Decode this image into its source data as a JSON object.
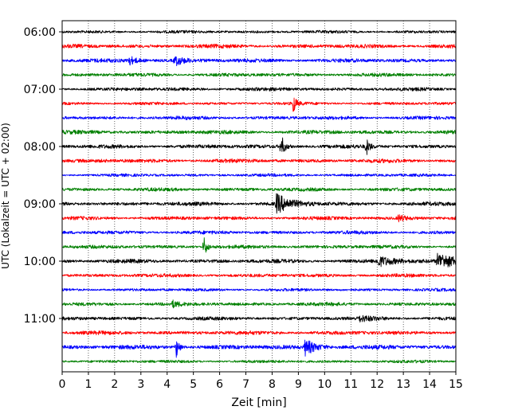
{
  "chart_data": {
    "type": "line",
    "title": "",
    "xlabel": "Zeit  [min]",
    "ylabel": "UTC (Lokalzeit = UTC + 02:00)",
    "xlim": [
      0,
      15
    ],
    "x_ticks": [
      0,
      1,
      2,
      3,
      4,
      5,
      6,
      7,
      8,
      9,
      10,
      11,
      12,
      13,
      14,
      15
    ],
    "grid": "vertical dotted",
    "start_time": "06:00",
    "row_interval_minutes": 15,
    "y_tick_labels": [
      "06:00",
      "07:00",
      "08:00",
      "09:00",
      "10:00",
      "11:00"
    ],
    "colors": [
      "#000000",
      "#ff0000",
      "#0000ff",
      "#008000"
    ],
    "rows": [
      {
        "time": "06:00",
        "color": "#000000",
        "noise": 1.5,
        "events": []
      },
      {
        "time": "06:15",
        "color": "#ff0000",
        "noise": 2.0,
        "events": []
      },
      {
        "time": "06:30",
        "color": "#0000ff",
        "noise": 2.0,
        "events": [
          {
            "t": 2.5,
            "amp": 6,
            "dur": 0.3
          },
          {
            "t": 4.3,
            "amp": 6,
            "dur": 0.3
          }
        ]
      },
      {
        "time": "06:45",
        "color": "#008000",
        "noise": 1.8,
        "events": []
      },
      {
        "time": "07:00",
        "color": "#000000",
        "noise": 1.8,
        "events": []
      },
      {
        "time": "07:15",
        "color": "#ff0000",
        "noise": 1.5,
        "events": [
          {
            "t": 8.8,
            "amp": 12,
            "dur": 0.1
          }
        ]
      },
      {
        "time": "07:30",
        "color": "#0000ff",
        "noise": 1.8,
        "events": []
      },
      {
        "time": "07:45",
        "color": "#008000",
        "noise": 2.0,
        "events": []
      },
      {
        "time": "08:00",
        "color": "#000000",
        "noise": 2.0,
        "events": [
          {
            "t": 8.35,
            "amp": 14,
            "dur": 0.12
          },
          {
            "t": 11.6,
            "amp": 10,
            "dur": 0.1
          }
        ]
      },
      {
        "time": "08:15",
        "color": "#ff0000",
        "noise": 2.0,
        "events": []
      },
      {
        "time": "08:30",
        "color": "#0000ff",
        "noise": 1.5,
        "events": []
      },
      {
        "time": "08:45",
        "color": "#008000",
        "noise": 1.8,
        "events": []
      },
      {
        "time": "09:00",
        "color": "#000000",
        "noise": 2.0,
        "events": [
          {
            "t": 8.15,
            "amp": 12,
            "dur": 0.5
          }
        ]
      },
      {
        "time": "09:15",
        "color": "#ff0000",
        "noise": 1.8,
        "events": [
          {
            "t": 12.8,
            "amp": 4,
            "dur": 0.3
          }
        ]
      },
      {
        "time": "09:30",
        "color": "#0000ff",
        "noise": 1.8,
        "events": []
      },
      {
        "time": "09:45",
        "color": "#008000",
        "noise": 1.8,
        "events": [
          {
            "t": 5.4,
            "amp": 14,
            "dur": 0.1
          }
        ]
      },
      {
        "time": "10:00",
        "color": "#000000",
        "noise": 2.0,
        "events": [
          {
            "t": 12.0,
            "amp": 6,
            "dur": 0.6
          },
          {
            "t": 14.3,
            "amp": 9,
            "dur": 0.9
          }
        ]
      },
      {
        "time": "10:15",
        "color": "#ff0000",
        "noise": 1.8,
        "events": []
      },
      {
        "time": "10:30",
        "color": "#0000ff",
        "noise": 1.5,
        "events": []
      },
      {
        "time": "10:45",
        "color": "#008000",
        "noise": 1.8,
        "events": [
          {
            "t": 4.2,
            "amp": 4,
            "dur": 0.2
          }
        ]
      },
      {
        "time": "11:00",
        "color": "#000000",
        "noise": 1.8,
        "events": [
          {
            "t": 11.3,
            "amp": 3,
            "dur": 0.6
          }
        ]
      },
      {
        "time": "11:15",
        "color": "#ff0000",
        "noise": 2.0,
        "events": []
      },
      {
        "time": "11:30",
        "color": "#0000ff",
        "noise": 2.2,
        "events": [
          {
            "t": 4.35,
            "amp": 14,
            "dur": 0.1
          },
          {
            "t": 9.25,
            "amp": 10,
            "dur": 0.4
          }
        ]
      },
      {
        "time": "11:45",
        "color": "#008000",
        "noise": 1.5,
        "events": []
      }
    ]
  }
}
